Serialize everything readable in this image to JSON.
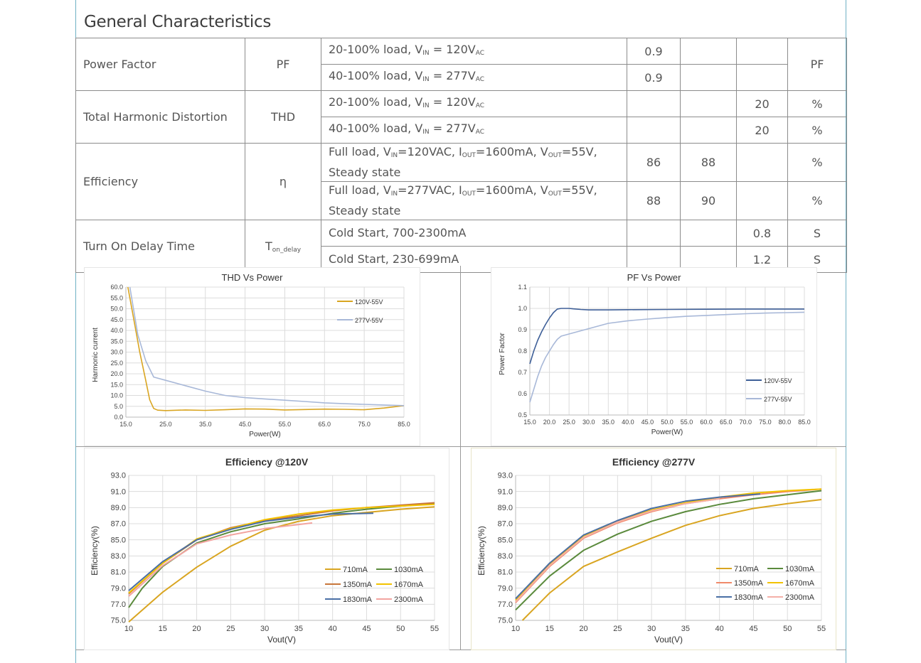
{
  "section_title": "General Characteristics",
  "table": {
    "power_factor": {
      "label": "Power Factor",
      "symbol": "PF",
      "unit": "PF",
      "row1": {
        "cond_a": "20-100% load, V",
        "sub_in": "IN",
        "cond_b": " = 120V",
        "sub_ac": "AC",
        "min": "0.9"
      },
      "row2": {
        "cond_a": "40-100% load, V",
        "sub_in": "IN",
        "cond_b": " = 277V",
        "sub_ac": "AC",
        "min": "0.9"
      }
    },
    "thd": {
      "label": "Total Harmonic Distortion",
      "symbol": "THD",
      "row1": {
        "cond_a": "20-100% load, V",
        "sub_in": "IN",
        "cond_b": " = 120V",
        "sub_ac": "AC",
        "max": "20",
        "unit": "%"
      },
      "row2": {
        "cond_a": "40-100% load, V",
        "sub_in": "IN",
        "cond_b": " = 277V",
        "sub_ac": "AC",
        "max": "20",
        "unit": "%"
      }
    },
    "efficiency": {
      "label": "Efficiency",
      "symbol": "η",
      "row1": {
        "p1": "Full load, V",
        "s1": "IN",
        "p2": "=120VAC, I",
        "s2": "OUT",
        "p3": "=1600mA, V",
        "s3": "OUT",
        "p4": "=55V,",
        "line2": "Steady state",
        "min": "86",
        "typ": "88",
        "unit": "%"
      },
      "row2": {
        "p1": "Full load, V",
        "s1": "IN",
        "p2": "=277VAC, I",
        "s2": "OUT",
        "p3": "=1600mA, V",
        "s3": "OUT",
        "p4": "=55V,",
        "line2": "Steady state",
        "min": "88",
        "typ": "90",
        "unit": "%"
      }
    },
    "turn_on": {
      "label": "Turn On Delay Time",
      "symbol_main": "T",
      "symbol_sub": "on_delay",
      "row1": {
        "cond": "Cold Start, 700-2300mA",
        "max": "0.8",
        "unit": "S"
      },
      "row2": {
        "cond": "Cold Start, 230-699mA",
        "max": "1.2",
        "unit": "S"
      }
    }
  },
  "chart_data": [
    {
      "type": "line",
      "title": "THD Vs Power",
      "xlabel": "Power(W)",
      "ylabel": "Harmonic current",
      "xlim": [
        15,
        85
      ],
      "ylim": [
        0,
        60
      ],
      "xticks": [
        "15.0",
        "25.0",
        "35.0",
        "45.0",
        "55.0",
        "65.0",
        "75.0",
        "85.0"
      ],
      "yticks": [
        "0.0",
        "5.0",
        "10.0",
        "15.0",
        "20.0",
        "25.0",
        "30.0",
        "35.0",
        "40.0",
        "45.0",
        "50.0",
        "55.0",
        "60.0"
      ],
      "series": [
        {
          "name": "120V-55V",
          "color": "#d9a521",
          "x": [
            15.5,
            17,
            18.5,
            20,
            21,
            22,
            23,
            25,
            30,
            35,
            40,
            45,
            50,
            55,
            60,
            65,
            70,
            75,
            80,
            85
          ],
          "y": [
            60,
            45,
            30,
            17,
            8,
            4,
            3.2,
            3,
            3.3,
            3.1,
            3.4,
            3.8,
            3.7,
            3.3,
            3.5,
            3.7,
            3.6,
            3.4,
            4.2,
            5.3
          ]
        },
        {
          "name": "277V-55V",
          "color": "#a8b8d8",
          "x": [
            16,
            18,
            20,
            22,
            25,
            30,
            35,
            40,
            45,
            50,
            55,
            60,
            65,
            70,
            75,
            80,
            85
          ],
          "y": [
            60,
            38,
            26,
            18.5,
            17,
            14.5,
            12,
            10,
            9,
            8.4,
            7.8,
            7.2,
            6.6,
            6.2,
            5.9,
            5.6,
            5.3
          ]
        }
      ]
    },
    {
      "type": "line",
      "title": "PF Vs Power",
      "xlabel": "Power(W)",
      "ylabel": "Power Factor",
      "xlim": [
        15,
        85
      ],
      "ylim": [
        0.5,
        1.1
      ],
      "xticks": [
        "15.0",
        "20.0",
        "25.0",
        "30.0",
        "35.0",
        "40.0",
        "45.0",
        "50.0",
        "55.0",
        "60.0",
        "65.0",
        "70.0",
        "75.0",
        "80.0",
        "85.0"
      ],
      "yticks": [
        "0.5",
        "0.6",
        "0.7",
        "0.8",
        "0.9",
        "1.0",
        "1.1"
      ],
      "series": [
        {
          "name": "120V-55V",
          "color": "#3e5f98",
          "x": [
            15,
            16,
            17,
            18,
            19,
            20,
            21,
            22,
            23,
            24,
            25,
            26,
            28,
            30,
            35,
            40,
            50,
            60,
            70,
            80,
            85
          ],
          "y": [
            0.74,
            0.8,
            0.85,
            0.89,
            0.925,
            0.955,
            0.98,
            0.997,
            1.0,
            1.0,
            1.0,
            0.998,
            0.995,
            0.993,
            0.993,
            0.994,
            0.995,
            0.996,
            0.997,
            0.997,
            0.997
          ]
        },
        {
          "name": "277V-55V",
          "color": "#a8b8d8",
          "x": [
            15,
            16,
            17,
            18,
            19,
            20,
            21,
            22,
            23,
            25,
            30,
            35,
            40,
            45,
            50,
            55,
            60,
            65,
            70,
            75,
            80,
            85
          ],
          "y": [
            0.56,
            0.62,
            0.68,
            0.73,
            0.77,
            0.8,
            0.83,
            0.855,
            0.87,
            0.88,
            0.905,
            0.93,
            0.942,
            0.95,
            0.957,
            0.963,
            0.967,
            0.971,
            0.975,
            0.978,
            0.98,
            0.982
          ]
        }
      ]
    },
    {
      "type": "line",
      "title": "Efficiency @120V",
      "xlabel": "Vout(V)",
      "ylabel": "Efficiency(%)",
      "xlim": [
        10,
        55
      ],
      "ylim": [
        75,
        93
      ],
      "xticks": [
        "10",
        "15",
        "20",
        "25",
        "30",
        "35",
        "40",
        "45",
        "50",
        "55"
      ],
      "yticks": [
        "75.0",
        "77.0",
        "79.0",
        "81.0",
        "83.0",
        "85.0",
        "87.0",
        "89.0",
        "91.0",
        "93.0"
      ],
      "series": [
        {
          "name": "710mA",
          "color": "#d9a521",
          "x": [
            10,
            15,
            20,
            25,
            30,
            35,
            40,
            45,
            50,
            55
          ],
          "y": [
            74.8,
            78.5,
            81.6,
            84.2,
            86.2,
            87.3,
            88.0,
            88.4,
            88.8,
            89.1
          ]
        },
        {
          "name": "1030mA",
          "color": "#5a8a3c",
          "x": [
            10,
            12,
            15,
            20,
            25,
            30,
            35,
            40,
            45,
            50,
            55
          ],
          "y": [
            76.6,
            79.0,
            81.7,
            84.6,
            86.0,
            87.0,
            87.6,
            88.3,
            88.8,
            89.2,
            89.5
          ]
        },
        {
          "name": "1350mA",
          "color": "#c8763a",
          "x": [
            10,
            15,
            20,
            25,
            30,
            35,
            40,
            45,
            50,
            55
          ],
          "y": [
            78.3,
            82.1,
            85.0,
            86.5,
            87.4,
            88.0,
            88.6,
            89.0,
            89.3,
            89.6
          ]
        },
        {
          "name": "1670mA",
          "color": "#f2c200",
          "x": [
            10,
            15,
            20,
            25,
            30,
            35,
            40,
            45,
            50,
            55
          ],
          "y": [
            78.4,
            82.1,
            85.1,
            86.4,
            87.5,
            88.2,
            88.7,
            89.0,
            89.2,
            89.4
          ]
        },
        {
          "name": "1830mA",
          "color": "#4a6fa5",
          "x": [
            10,
            15,
            20,
            25,
            30,
            35,
            40,
            46
          ],
          "y": [
            78.7,
            82.3,
            85.0,
            86.3,
            87.3,
            87.8,
            88.2,
            88.3
          ]
        },
        {
          "name": "2300mA",
          "color": "#f2a4a0",
          "x": [
            10,
            15,
            20,
            25,
            30,
            35,
            37
          ],
          "y": [
            78.0,
            81.8,
            84.5,
            85.6,
            86.4,
            86.9,
            87.1
          ]
        }
      ]
    },
    {
      "type": "line",
      "title": "Efficiency @277V",
      "xlabel": "Vout(V)",
      "ylabel": "Efficiency(%)",
      "xlim": [
        10,
        55
      ],
      "ylim": [
        75,
        93
      ],
      "xticks": [
        "10",
        "15",
        "20",
        "25",
        "30",
        "35",
        "40",
        "45",
        "50",
        "55"
      ],
      "yticks": [
        "75.0",
        "77.0",
        "79.0",
        "81.0",
        "83.0",
        "85.0",
        "87.0",
        "89.0",
        "91.0",
        "93.0"
      ],
      "series": [
        {
          "name": "710mA",
          "color": "#d9a521",
          "x": [
            11,
            15,
            20,
            25,
            30,
            35,
            40,
            45,
            50,
            55
          ],
          "y": [
            75.0,
            78.4,
            81.7,
            83.5,
            85.2,
            86.8,
            88.0,
            88.9,
            89.5,
            90.0
          ]
        },
        {
          "name": "1030mA",
          "color": "#5a8a3c",
          "x": [
            10,
            15,
            20,
            25,
            30,
            35,
            40,
            45,
            50,
            55
          ],
          "y": [
            76.3,
            80.5,
            83.7,
            85.7,
            87.3,
            88.5,
            89.4,
            90.1,
            90.6,
            91.1
          ]
        },
        {
          "name": "1350mA",
          "color": "#f08a6a",
          "x": [
            10,
            15,
            20,
            25,
            30,
            35,
            40,
            45,
            50,
            55
          ],
          "y": [
            77.2,
            81.7,
            85.2,
            87.1,
            88.5,
            89.5,
            90.1,
            90.6,
            91.0,
            91.3
          ]
        },
        {
          "name": "1670mA",
          "color": "#f2c200",
          "x": [
            10,
            15,
            20,
            25,
            30,
            35,
            40,
            45,
            50,
            55
          ],
          "y": [
            77.5,
            82.0,
            85.5,
            87.3,
            88.7,
            89.6,
            90.3,
            90.8,
            91.1,
            91.3
          ]
        },
        {
          "name": "1830mA",
          "color": "#4a6fa5",
          "x": [
            10,
            15,
            20,
            25,
            30,
            35,
            40,
            46
          ],
          "y": [
            77.7,
            82.1,
            85.6,
            87.4,
            88.9,
            89.8,
            90.3,
            90.7
          ]
        },
        {
          "name": "2300mA",
          "color": "#f4b0a8",
          "x": [
            10,
            15,
            20,
            25,
            30,
            35,
            40
          ],
          "y": [
            77.3,
            81.8,
            85.3,
            87.2,
            88.6,
            89.5,
            90.1
          ]
        }
      ]
    }
  ]
}
